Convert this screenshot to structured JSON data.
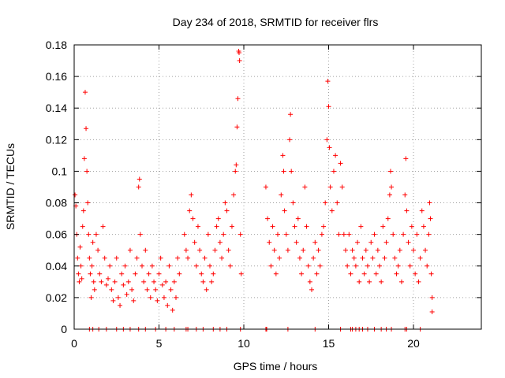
{
  "chart_data": {
    "type": "scatter",
    "title": "Day 234 of 2018, SRMTID for receiver flrs",
    "xlabel": "GPS time / hours",
    "ylabel": "SRMTID / TECUs",
    "xlim": [
      0,
      24
    ],
    "ylim": [
      0,
      0.18
    ],
    "x_ticks": [
      0,
      5,
      10,
      15,
      20
    ],
    "y_ticks": [
      0,
      0.02,
      0.04,
      0.06,
      0.08,
      0.1,
      0.12,
      0.14,
      0.16,
      0.18
    ],
    "x_tick_labels": [
      "0",
      "5",
      "10",
      "15",
      "20"
    ],
    "y_tick_labels": [
      "0",
      "0.02",
      "0.04",
      "0.06",
      "0.08",
      "0.1",
      "0.12",
      "0.14",
      "0.16",
      "0.18"
    ],
    "grid": true,
    "marker": "+",
    "color": "#ff0000",
    "series": [
      {
        "points": [
          [
            0.05,
            0.085
          ],
          [
            0.1,
            0.078
          ],
          [
            0.15,
            0.06
          ],
          [
            0.2,
            0.045
          ],
          [
            0.25,
            0.035
          ],
          [
            0.3,
            0.03
          ],
          [
            0.35,
            0.052
          ],
          [
            0.4,
            0.04
          ],
          [
            0.45,
            0.032
          ],
          [
            0.5,
            0.065
          ],
          [
            0.55,
            0.075
          ],
          [
            0.6,
            0.108
          ],
          [
            0.65,
            0.15
          ],
          [
            0.7,
            0.127
          ],
          [
            0.75,
            0.1
          ],
          [
            0.8,
            0.08
          ],
          [
            0.85,
            0.06
          ],
          [
            0.9,
            0.045
          ],
          [
            0.95,
            0.035
          ],
          [
            1.0,
            0.02
          ],
          [
            1.05,
            0.04
          ],
          [
            1.1,
            0.055
          ],
          [
            1.15,
            0.03
          ],
          [
            1.2,
            0.025
          ],
          [
            1.3,
            0.06
          ],
          [
            1.4,
            0.05
          ],
          [
            1.5,
            0.035
          ],
          [
            1.6,
            0.03
          ],
          [
            1.7,
            0.065
          ],
          [
            1.8,
            0.045
          ],
          [
            1.9,
            0.028
          ],
          [
            2.0,
            0.032
          ],
          [
            2.1,
            0.04
          ],
          [
            2.2,
            0.025
          ],
          [
            2.3,
            0.018
          ],
          [
            2.4,
            0.03
          ],
          [
            2.5,
            0.045
          ],
          [
            2.6,
            0.02
          ],
          [
            2.7,
            0.015
          ],
          [
            2.8,
            0.035
          ],
          [
            2.9,
            0.028
          ],
          [
            3.0,
            0.04
          ],
          [
            3.1,
            0.022
          ],
          [
            3.2,
            0.03
          ],
          [
            3.3,
            0.05
          ],
          [
            3.4,
            0.025
          ],
          [
            3.5,
            0.018
          ],
          [
            3.6,
            0.035
          ],
          [
            3.7,
            0.045
          ],
          [
            3.8,
            0.09
          ],
          [
            3.85,
            0.095
          ],
          [
            3.9,
            0.06
          ],
          [
            4.0,
            0.04
          ],
          [
            4.1,
            0.03
          ],
          [
            4.2,
            0.05
          ],
          [
            4.3,
            0.025
          ],
          [
            4.4,
            0.035
          ],
          [
            4.5,
            0.02
          ],
          [
            4.6,
            0.04
          ],
          [
            4.7,
            0.03
          ],
          [
            4.8,
            0.025
          ],
          [
            4.9,
            0.018
          ],
          [
            5.0,
            0.035
          ],
          [
            5.1,
            0.045
          ],
          [
            5.2,
            0.028
          ],
          [
            5.3,
            0.02
          ],
          [
            5.4,
            0.03
          ],
          [
            5.5,
            0.015
          ],
          [
            5.6,
            0.04
          ],
          [
            5.7,
            0.025
          ],
          [
            5.8,
            0.012
          ],
          [
            5.9,
            0.03
          ],
          [
            6.0,
            0.02
          ],
          [
            6.1,
            0.045
          ],
          [
            6.2,
            0.035
          ],
          [
            6.5,
            0.06
          ],
          [
            6.6,
            0.05
          ],
          [
            6.7,
            0.045
          ],
          [
            6.8,
            0.075
          ],
          [
            6.9,
            0.085
          ],
          [
            7.0,
            0.07
          ],
          [
            7.1,
            0.055
          ],
          [
            7.2,
            0.04
          ],
          [
            7.3,
            0.065
          ],
          [
            7.4,
            0.05
          ],
          [
            7.5,
            0.035
          ],
          [
            7.6,
            0.03
          ],
          [
            7.7,
            0.045
          ],
          [
            7.8,
            0.025
          ],
          [
            7.9,
            0.06
          ],
          [
            8.0,
            0.04
          ],
          [
            8.1,
            0.03
          ],
          [
            8.2,
            0.035
          ],
          [
            8.3,
            0.05
          ],
          [
            8.4,
            0.065
          ],
          [
            8.5,
            0.07
          ],
          [
            8.6,
            0.055
          ],
          [
            8.7,
            0.045
          ],
          [
            8.8,
            0.06
          ],
          [
            8.9,
            0.08
          ],
          [
            9.0,
            0.075
          ],
          [
            9.1,
            0.05
          ],
          [
            9.2,
            0.04
          ],
          [
            9.3,
            0.065
          ],
          [
            9.4,
            0.085
          ],
          [
            9.5,
            0.1
          ],
          [
            9.55,
            0.104
          ],
          [
            9.6,
            0.128
          ],
          [
            9.65,
            0.146
          ],
          [
            9.7,
            0.176
          ],
          [
            9.72,
            0.175
          ],
          [
            9.75,
            0.17
          ],
          [
            9.8,
            0.06
          ],
          [
            9.85,
            0.035
          ],
          [
            11.3,
            0.09
          ],
          [
            11.4,
            0.07
          ],
          [
            11.5,
            0.055
          ],
          [
            11.6,
            0.04
          ],
          [
            11.7,
            0.065
          ],
          [
            11.8,
            0.05
          ],
          [
            11.9,
            0.035
          ],
          [
            12.0,
            0.06
          ],
          [
            12.1,
            0.045
          ],
          [
            12.2,
            0.085
          ],
          [
            12.3,
            0.11
          ],
          [
            12.35,
            0.1
          ],
          [
            12.4,
            0.075
          ],
          [
            12.5,
            0.06
          ],
          [
            12.6,
            0.05
          ],
          [
            12.7,
            0.12
          ],
          [
            12.75,
            0.136
          ],
          [
            12.8,
            0.1
          ],
          [
            12.9,
            0.08
          ],
          [
            13.0,
            0.065
          ],
          [
            13.1,
            0.055
          ],
          [
            13.2,
            0.07
          ],
          [
            13.3,
            0.045
          ],
          [
            13.4,
            0.035
          ],
          [
            13.5,
            0.05
          ],
          [
            13.6,
            0.09
          ],
          [
            13.7,
            0.065
          ],
          [
            13.8,
            0.04
          ],
          [
            13.9,
            0.03
          ],
          [
            14.0,
            0.025
          ],
          [
            14.1,
            0.045
          ],
          [
            14.2,
            0.055
          ],
          [
            14.3,
            0.035
          ],
          [
            14.4,
            0.05
          ],
          [
            14.5,
            0.04
          ],
          [
            14.6,
            0.06
          ],
          [
            14.7,
            0.065
          ],
          [
            14.8,
            0.08
          ],
          [
            14.9,
            0.12
          ],
          [
            14.95,
            0.157
          ],
          [
            15.0,
            0.141
          ],
          [
            15.05,
            0.115
          ],
          [
            15.1,
            0.09
          ],
          [
            15.2,
            0.075
          ],
          [
            15.3,
            0.1
          ],
          [
            15.4,
            0.11
          ],
          [
            15.5,
            0.08
          ],
          [
            15.6,
            0.06
          ],
          [
            15.7,
            0.105
          ],
          [
            15.8,
            0.09
          ],
          [
            15.9,
            0.06
          ],
          [
            16.0,
            0.05
          ],
          [
            16.1,
            0.04
          ],
          [
            16.2,
            0.06
          ],
          [
            16.3,
            0.035
          ],
          [
            16.4,
            0.05
          ],
          [
            16.5,
            0.045
          ],
          [
            16.6,
            0.04
          ],
          [
            16.7,
            0.055
          ],
          [
            16.8,
            0.03
          ],
          [
            16.9,
            0.065
          ],
          [
            17.0,
            0.045
          ],
          [
            17.1,
            0.035
          ],
          [
            17.2,
            0.05
          ],
          [
            17.3,
            0.04
          ],
          [
            17.4,
            0.03
          ],
          [
            17.5,
            0.055
          ],
          [
            17.6,
            0.045
          ],
          [
            17.7,
            0.06
          ],
          [
            17.8,
            0.035
          ],
          [
            17.9,
            0.05
          ],
          [
            18.0,
            0.04
          ],
          [
            18.1,
            0.03
          ],
          [
            18.2,
            0.065
          ],
          [
            18.3,
            0.045
          ],
          [
            18.4,
            0.055
          ],
          [
            18.5,
            0.07
          ],
          [
            18.6,
            0.085
          ],
          [
            18.65,
            0.1
          ],
          [
            18.7,
            0.09
          ],
          [
            18.8,
            0.06
          ],
          [
            18.9,
            0.045
          ],
          [
            19.0,
            0.035
          ],
          [
            19.1,
            0.04
          ],
          [
            19.2,
            0.05
          ],
          [
            19.3,
            0.03
          ],
          [
            19.4,
            0.06
          ],
          [
            19.5,
            0.085
          ],
          [
            19.55,
            0.108
          ],
          [
            19.6,
            0.075
          ],
          [
            19.7,
            0.055
          ],
          [
            19.8,
            0.04
          ],
          [
            19.9,
            0.065
          ],
          [
            20.0,
            0.05
          ],
          [
            20.1,
            0.035
          ],
          [
            20.2,
            0.06
          ],
          [
            20.3,
            0.03
          ],
          [
            20.4,
            0.045
          ],
          [
            20.5,
            0.075
          ],
          [
            20.6,
            0.065
          ],
          [
            20.7,
            0.05
          ],
          [
            20.8,
            0.04
          ],
          [
            20.9,
            0.06
          ],
          [
            20.95,
            0.08
          ],
          [
            21.0,
            0.07
          ],
          [
            21.05,
            0.035
          ],
          [
            21.1,
            0.02
          ],
          [
            21.1,
            0.011
          ]
        ],
        "baseline_points": [
          0.9,
          1.1,
          1.45,
          1.9,
          2.5,
          2.9,
          3.3,
          3.8,
          4.2,
          4.8,
          5.4,
          5.9,
          6.6,
          6.7,
          7.2,
          7.6,
          8.2,
          8.6,
          9.0,
          9.8,
          11.3,
          11.35,
          12.6,
          14.2,
          15.7,
          16.3,
          16.4,
          16.6,
          16.8,
          17.0,
          17.3,
          17.7,
          18.1,
          18.4,
          18.7,
          19.5,
          19.6,
          20.4
        ]
      }
    ]
  }
}
